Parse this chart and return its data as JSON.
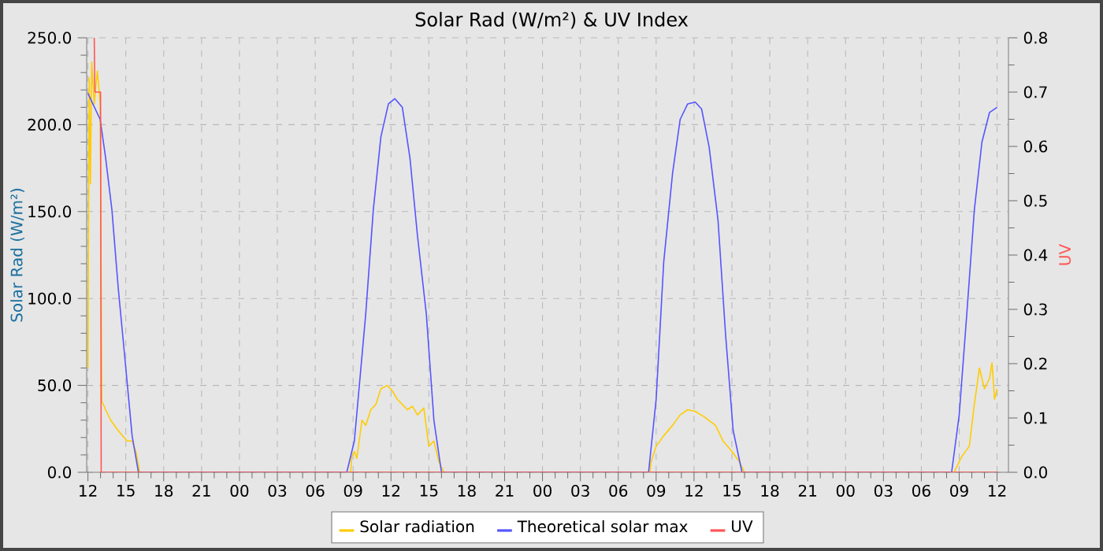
{
  "chart_data": {
    "type": "line",
    "title": "Solar Rad (W/m²) &  UV Index",
    "ylabel": "Solar Rad (W/m²)",
    "y2label": "UV",
    "xlim": [
      11.9,
      84.9
    ],
    "ylim": [
      0,
      250
    ],
    "y2lim": [
      0,
      0.8
    ],
    "xticks": [
      {
        "value": 12,
        "label": "12"
      },
      {
        "value": 15,
        "label": "15"
      },
      {
        "value": 18,
        "label": "18"
      },
      {
        "value": 21,
        "label": "21"
      },
      {
        "value": 24,
        "label": "00"
      },
      {
        "value": 27,
        "label": "03"
      },
      {
        "value": 30,
        "label": "06"
      },
      {
        "value": 33,
        "label": "09"
      },
      {
        "value": 36,
        "label": "12"
      },
      {
        "value": 39,
        "label": "15"
      },
      {
        "value": 42,
        "label": "18"
      },
      {
        "value": 45,
        "label": "21"
      },
      {
        "value": 48,
        "label": "00"
      },
      {
        "value": 51,
        "label": "03"
      },
      {
        "value": 54,
        "label": "06"
      },
      {
        "value": 57,
        "label": "09"
      },
      {
        "value": 60,
        "label": "12"
      },
      {
        "value": 63,
        "label": "15"
      },
      {
        "value": 66,
        "label": "18"
      },
      {
        "value": 69,
        "label": "21"
      },
      {
        "value": 72,
        "label": "00"
      },
      {
        "value": 75,
        "label": "03"
      },
      {
        "value": 78,
        "label": "06"
      },
      {
        "value": 81,
        "label": "09"
      },
      {
        "value": 84,
        "label": "12"
      }
    ],
    "yticks": [
      {
        "value": 0,
        "label": "0.0"
      },
      {
        "value": 50,
        "label": "50.0"
      },
      {
        "value": 100,
        "label": "100.0"
      },
      {
        "value": 150,
        "label": "150.0"
      },
      {
        "value": 200,
        "label": "200.0"
      },
      {
        "value": 250,
        "label": "250.0"
      }
    ],
    "y2ticks": [
      {
        "value": 0,
        "label": "0.0"
      },
      {
        "value": 0.1,
        "label": "0.1"
      },
      {
        "value": 0.2,
        "label": "0.2"
      },
      {
        "value": 0.3,
        "label": "0.3"
      },
      {
        "value": 0.4,
        "label": "0.4"
      },
      {
        "value": 0.5,
        "label": "0.5"
      },
      {
        "value": 0.6,
        "label": "0.6"
      },
      {
        "value": 0.7,
        "label": "0.7"
      },
      {
        "value": 0.8,
        "label": "0.8"
      }
    ],
    "grid": true,
    "legend": "bottom",
    "series": [
      {
        "name": "Solar radiation",
        "color": "#ffcc00",
        "x": [
          12.0,
          12.1,
          12.2,
          12.3,
          12.5,
          12.75,
          12.97,
          13.1,
          13.4,
          13.8,
          14.4,
          15.1,
          15.5,
          15.8,
          16.1,
          32.8,
          32.9,
          33.1,
          33.3,
          33.7,
          34.0,
          34.4,
          34.8,
          35.2,
          35.7,
          36.1,
          36.5,
          36.9,
          37.3,
          37.7,
          38.1,
          38.6,
          39.0,
          39.4,
          39.8,
          40.2,
          56.5,
          56.6,
          57.0,
          57.6,
          58.3,
          58.9,
          59.5,
          60.1,
          60.8,
          61.7,
          62.3,
          63.0,
          63.6,
          64.0,
          80.6,
          81.2,
          81.8,
          82.2,
          82.6,
          83.0,
          83.4,
          83.6,
          83.8,
          84.0
        ],
        "values": [
          60,
          227,
          166,
          236,
          212,
          231,
          212,
          41,
          36,
          30,
          24,
          18,
          18,
          12,
          0,
          0,
          9,
          12,
          8,
          30,
          27,
          36,
          39,
          48,
          50,
          47,
          42,
          39,
          36,
          38,
          33,
          37,
          15,
          18,
          6,
          0,
          0,
          6,
          15,
          21,
          27,
          33,
          36,
          35,
          32,
          27,
          18,
          12,
          6,
          0,
          0,
          9,
          15,
          39,
          60,
          48,
          54,
          63,
          42,
          48
        ]
      },
      {
        "name": "Theoretical solar max",
        "color": "#5555ff",
        "x": [
          12.0,
          12.97,
          13.4,
          13.9,
          14.4,
          15.0,
          15.5,
          16.0,
          32.5,
          33.1,
          34.0,
          34.6,
          35.2,
          35.8,
          36.3,
          36.9,
          37.5,
          38.1,
          38.8,
          39.4,
          40.0,
          56.4,
          57.0,
          57.6,
          58.3,
          58.9,
          59.5,
          60.1,
          60.6,
          61.2,
          61.9,
          62.5,
          63.1,
          63.8,
          80.4,
          81.0,
          81.6,
          82.2,
          82.8,
          83.4,
          84.0
        ],
        "values": [
          218,
          203,
          181,
          151,
          106,
          60,
          21,
          0,
          0,
          18,
          91,
          151,
          193,
          212,
          215,
          210,
          181,
          136,
          91,
          30,
          0,
          0,
          42,
          121,
          172,
          203,
          212,
          213,
          209,
          187,
          145,
          79,
          24,
          0,
          0,
          33,
          91,
          151,
          190,
          207,
          210
        ]
      },
      {
        "name": "UV",
        "color": "#ff5555",
        "axis": "y2",
        "x": [
          12.5,
          12.55,
          13.0,
          13.05,
          84.0
        ],
        "values": [
          0.8,
          0.7,
          0.7,
          0,
          0
        ]
      }
    ]
  }
}
